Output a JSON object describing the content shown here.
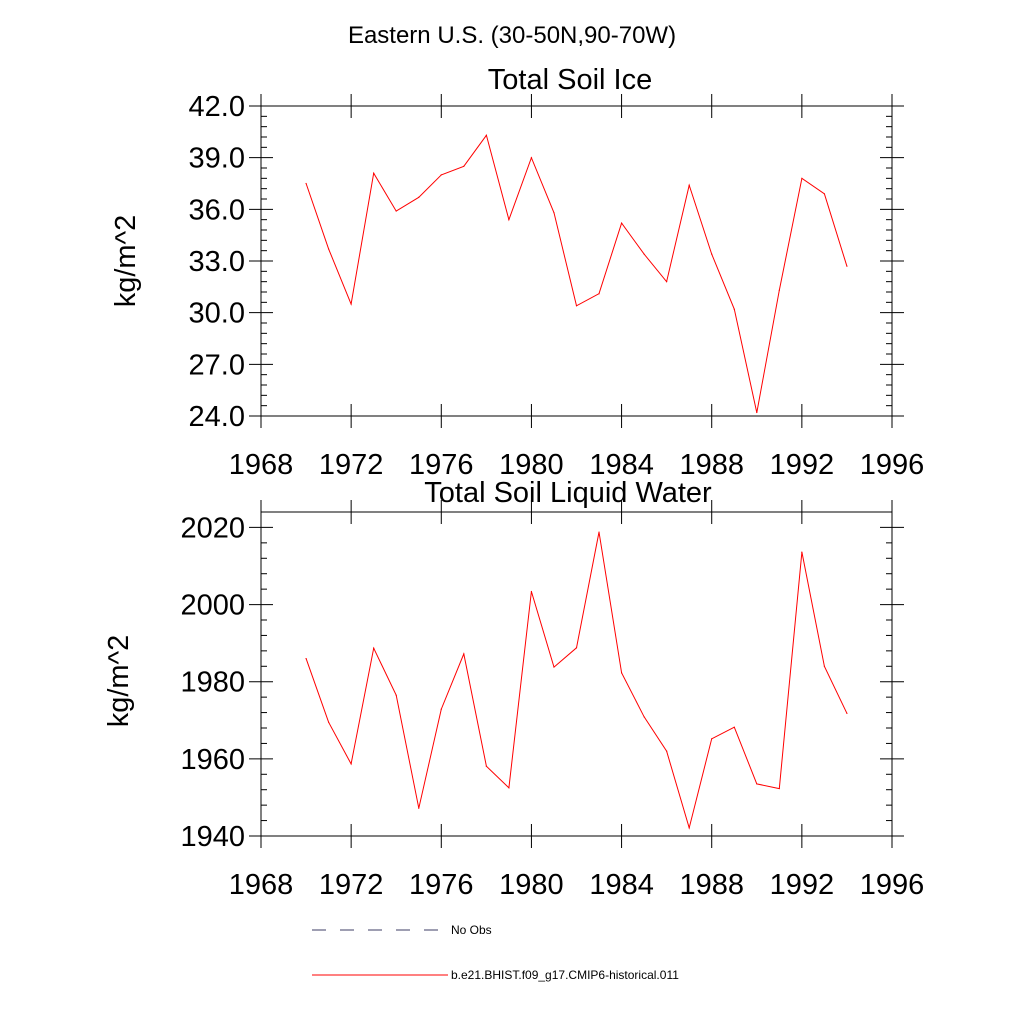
{
  "figure": {
    "suptitle": "Eastern U.S. (30-50N,90-70W)"
  },
  "legend": {
    "items": [
      {
        "label": "No Obs",
        "color": "#3c3c64",
        "style": "dashed"
      },
      {
        "label": "b.e21.BHIST.f09_g17.CMIP6-historical.011",
        "color": "#ff0000",
        "style": "solid"
      }
    ]
  },
  "chart_data": [
    {
      "type": "line",
      "title": "Total Soil Ice",
      "xlabel": "",
      "ylabel": "kg/m^2",
      "xlim": [
        1968,
        1996
      ],
      "ylim": [
        24,
        42
      ],
      "xticks": [
        "1968",
        "1972",
        "1976",
        "1980",
        "1984",
        "1988",
        "1992",
        "1996"
      ],
      "yticks": [
        "24.0",
        "27.0",
        "30.0",
        "33.0",
        "36.0",
        "39.0",
        "42.0"
      ],
      "grid": false,
      "x": [
        1970,
        1971,
        1972,
        1973,
        1974,
        1975,
        1976,
        1977,
        1978,
        1979,
        1980,
        1981,
        1982,
        1983,
        1984,
        1985,
        1986,
        1987,
        1988,
        1989,
        1990,
        1991,
        1992,
        1993,
        1994
      ],
      "series": [
        {
          "name": "b.e21.BHIST.f09_g17.CMIP6-historical.011",
          "color": "#ff0000",
          "values": [
            37.5,
            33.7,
            30.5,
            38.1,
            35.9,
            36.7,
            38.0,
            38.5,
            40.3,
            35.4,
            39.0,
            35.8,
            30.4,
            31.1,
            35.2,
            33.4,
            31.8,
            37.4,
            33.4,
            30.2,
            24.2,
            31.3,
            37.8,
            36.9,
            32.7
          ]
        }
      ]
    },
    {
      "type": "line",
      "title": "Total Soil Liquid Water",
      "xlabel": "",
      "ylabel": "kg/m^2",
      "xlim": [
        1968,
        1996
      ],
      "ylim": [
        1940,
        2024
      ],
      "xticks": [
        "1968",
        "1972",
        "1976",
        "1980",
        "1984",
        "1988",
        "1992",
        "1996"
      ],
      "yticks": [
        "1940",
        "1960",
        "1980",
        "2000",
        "2020"
      ],
      "grid": false,
      "x": [
        1970,
        1971,
        1972,
        1973,
        1974,
        1975,
        1976,
        1977,
        1978,
        1979,
        1980,
        1981,
        1982,
        1983,
        1984,
        1985,
        1986,
        1987,
        1988,
        1989,
        1990,
        1991,
        1992,
        1993,
        1994
      ],
      "series": [
        {
          "name": "b.e21.BHIST.f09_g17.CMIP6-historical.011",
          "color": "#ff0000",
          "values": [
            1986.0,
            1969.5,
            1958.7,
            1988.7,
            1976.5,
            1947.2,
            1972.9,
            1987.2,
            1958.1,
            1952.5,
            2003.4,
            1983.8,
            1988.8,
            2018.8,
            1982.3,
            1970.9,
            1962.0,
            1942.1,
            1965.2,
            1968.2,
            1953.5,
            1952.3,
            2013.6,
            1984.0,
            1971.8
          ]
        }
      ]
    }
  ]
}
